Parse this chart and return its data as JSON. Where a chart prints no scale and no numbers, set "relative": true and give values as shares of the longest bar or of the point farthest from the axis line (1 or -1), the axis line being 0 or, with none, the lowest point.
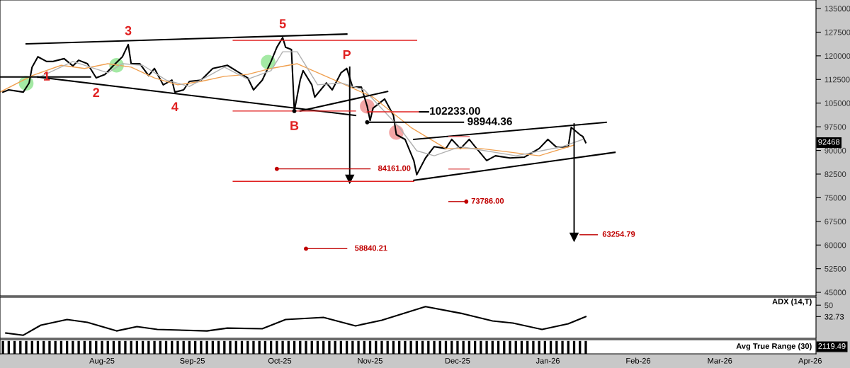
{
  "chart_data": [
    {
      "type": "line",
      "xlim": [
        "2025-06-27",
        "2026-04-03"
      ],
      "ylim": [
        43900,
        137700
      ],
      "yticks": [
        135000,
        127500,
        120000,
        112500,
        105000,
        97500,
        90000,
        82500,
        75000,
        67500,
        60000,
        52500,
        45000
      ],
      "tick_labels": "y",
      "series": [
        {
          "color": "#000000",
          "x": [
            "2025-06-28",
            "2025-06-30",
            "2025-07-05",
            "2025-07-07",
            "2025-07-08",
            "2025-07-10",
            "2025-07-13",
            "2025-07-15",
            "2025-07-19",
            "2025-07-22",
            "2025-07-24",
            "2025-07-27",
            "2025-07-30",
            "2025-08-02",
            "2025-08-05",
            "2025-08-08",
            "2025-08-10",
            "2025-08-11",
            "2025-08-14",
            "2025-08-17",
            "2025-08-19",
            "2025-08-22",
            "2025-08-25",
            "2025-08-26",
            "2025-08-29",
            "2025-08-31",
            "2025-09-04",
            "2025-09-08",
            "2025-09-13",
            "2025-09-16",
            "2025-09-20",
            "2025-09-22",
            "2025-09-25",
            "2025-09-28",
            "2025-09-30",
            "2025-10-02",
            "2025-10-03",
            "2025-10-05",
            "2025-10-06",
            "2025-10-08",
            "2025-10-09",
            "2025-10-12",
            "2025-10-13",
            "2025-10-17",
            "2025-10-19",
            "2025-10-22",
            "2025-10-24",
            "2025-10-25",
            "2025-10-26",
            "2025-10-29",
            "2025-10-31",
            "2025-11-01",
            "2025-11-02",
            "2025-11-06",
            "2025-11-09",
            "2025-11-10",
            "2025-11-13",
            "2025-11-16",
            "2025-11-17",
            "2025-11-20",
            "2025-11-23",
            "2025-11-27",
            "2025-11-29",
            "2025-12-02",
            "2025-12-05",
            "2025-12-07",
            "2025-12-11",
            "2025-12-14",
            "2025-12-19",
            "2025-12-24",
            "2025-12-29",
            "2026-01-01",
            "2026-01-04",
            "2026-01-08",
            "2026-01-09",
            "2026-01-12",
            "2026-01-13",
            "2026-01-14"
          ],
          "values": [
            108500,
            109200,
            108500,
            111400,
            116400,
            119700,
            118200,
            118200,
            119100,
            116800,
            118600,
            117500,
            113000,
            114100,
            117000,
            119700,
            123600,
            117500,
            117500,
            113700,
            116000,
            110800,
            112300,
            108500,
            109200,
            111900,
            112300,
            116000,
            117000,
            115300,
            113000,
            109200,
            112300,
            118200,
            122700,
            125800,
            122700,
            122000,
            102500,
            112300,
            115300,
            110800,
            106900,
            111400,
            109200,
            114600,
            116000,
            113000,
            110100,
            110100,
            104000,
            99500,
            103400,
            106300,
            101100,
            95000,
            93500,
            86800,
            82300,
            87600,
            91200,
            90600,
            93500,
            90600,
            93500,
            91200,
            86800,
            88300,
            87600,
            87900,
            90600,
            93500,
            91000,
            91200,
            97300,
            95000,
            94400,
            92468
          ]
        },
        {
          "color": "#f0a050",
          "x": [
            "2025-06-27",
            "2025-07-08",
            "2025-07-18",
            "2025-07-26",
            "2025-08-03",
            "2025-08-11",
            "2025-08-19",
            "2025-08-27",
            "2025-09-04",
            "2025-09-12",
            "2025-09-20",
            "2025-09-28",
            "2025-10-07",
            "2025-10-22",
            "2025-11-02",
            "2025-11-15",
            "2025-11-27",
            "2025-12-09",
            "2025-12-29",
            "2026-01-10"
          ],
          "values": [
            108500,
            113700,
            117000,
            116000,
            117500,
            116400,
            113000,
            110800,
            111900,
            113500,
            114100,
            116000,
            117500,
            111400,
            106900,
            97300,
            90600,
            90600,
            88300,
            91700
          ]
        },
        {
          "color": "#b0b0b0",
          "x": [
            "2025-07-10",
            "2025-07-22",
            "2025-08-03",
            "2025-08-08",
            "2025-08-15",
            "2025-08-23",
            "2025-08-31",
            "2025-09-12",
            "2025-09-20",
            "2025-09-28",
            "2025-10-02",
            "2025-10-07",
            "2025-10-14",
            "2025-10-22",
            "2025-10-30",
            "2025-11-11",
            "2025-11-17",
            "2025-11-23",
            "2025-12-02",
            "2025-12-21",
            "2026-01-06",
            "2026-01-13"
          ],
          "values": [
            113000,
            118200,
            114600,
            117500,
            117000,
            112300,
            110300,
            116400,
            112600,
            115300,
            121300,
            121300,
            110800,
            111400,
            109200,
            97300,
            89900,
            88300,
            91200,
            88300,
            91200,
            93500
          ]
        },
        {
          "color": "#000000",
          "x": [
            "2025-07-06",
            "2025-10-24"
          ],
          "values": [
            123800,
            126900
          ]
        },
        {
          "color": "#000000",
          "x": [
            "2025-06-27",
            "2025-07-28"
          ],
          "values": [
            113300,
            113300
          ]
        },
        {
          "color": "#000000",
          "x": [
            "2025-07-10",
            "2025-10-27"
          ],
          "values": [
            113300,
            101100
          ]
        },
        {
          "color": "#000000",
          "x": [
            "2025-10-08",
            "2025-11-07"
          ],
          "values": [
            102500,
            108700
          ]
        },
        {
          "color": "#000000",
          "x": [
            "2025-11-16",
            "2026-01-21"
          ],
          "values": [
            93500,
            98900
          ]
        },
        {
          "color": "#000000",
          "x": [
            "2025-11-16",
            "2026-01-24"
          ],
          "values": [
            80500,
            89400
          ]
        },
        {
          "color": "#000000",
          "marker": "triangle",
          "x": [
            "2025-10-25",
            "2025-10-25"
          ],
          "values": [
            116400,
            80900
          ]
        },
        {
          "color": "#000000",
          "marker": "triangle",
          "x": [
            "2026-01-10",
            "2026-01-10"
          ],
          "values": [
            98400,
            62500
          ]
        },
        {
          "color": "#e02020",
          "x": [
            "2025-09-15",
            "2025-11-17"
          ],
          "values": [
            124900,
            124900
          ]
        },
        {
          "color": "#e02020",
          "x": [
            "2025-09-15",
            "2025-10-27"
          ],
          "values": [
            102500,
            102500
          ]
        },
        {
          "color": "#e02020",
          "x": [
            "2025-09-15",
            "2025-11-16"
          ],
          "values": [
            80200,
            80200
          ]
        },
        {
          "color": "#e02020",
          "x": [
            "2025-10-31",
            "2025-11-18"
          ],
          "values": [
            102233,
            102233
          ]
        },
        {
          "color": "#000000",
          "x": [
            "2025-11-18",
            "2025-11-21"
          ],
          "values": [
            102233,
            102233
          ]
        },
        {
          "color": "#000000",
          "x": [
            "2025-10-31",
            "2025-12-03"
          ],
          "values": [
            98944.36,
            98944.36
          ]
        },
        {
          "color": "#c00000",
          "x": [
            "2025-09-30",
            "2025-11-01"
          ],
          "values": [
            84161,
            84161
          ]
        },
        {
          "color": "#c00000",
          "x": [
            "2025-11-28",
            "2025-12-04"
          ],
          "values": [
            73786,
            73786
          ]
        },
        {
          "color": "#c00000",
          "x": [
            "2025-10-10",
            "2025-10-24"
          ],
          "values": [
            58840.21,
            58840.21
          ]
        },
        {
          "color": "#c00000",
          "x": [
            "2026-01-12",
            "2026-01-18"
          ],
          "values": [
            63254.79,
            63254.79
          ]
        },
        {
          "color": "#e06060",
          "x": [
            "2025-11-28",
            "2025-12-05"
          ],
          "values": [
            84100,
            84100
          ]
        },
        {
          "color": "#e06060",
          "x": [
            "2025-11-28",
            "2025-12-05"
          ],
          "values": [
            94400,
            94400
          ]
        },
        {
          "type": "scatter",
          "color": "#c00000",
          "marker": "circle",
          "x": [
            "2025-09-30",
            "2025-12-04",
            "2025-10-10"
          ],
          "values": [
            84161,
            73786,
            58840.21
          ]
        },
        {
          "type": "scatter",
          "color": "#000000",
          "marker": "circle",
          "x": [
            "2025-10-06",
            "2025-10-31"
          ],
          "values": [
            102500,
            98944.36
          ]
        },
        {
          "type": "scatter",
          "color": "#7de07d",
          "marker": "circle",
          "x": [
            "2025-07-06",
            "2025-08-06",
            "2025-09-27"
          ],
          "values": [
            111300,
            117000,
            118000
          ]
        },
        {
          "type": "scatter",
          "color": "#f08080",
          "marker": "circle",
          "x": [
            "2025-10-31",
            "2025-11-10"
          ],
          "values": [
            104000,
            95700
          ]
        }
      ],
      "annotations": [
        {
          "text": "1",
          "x": "2025-07-13",
          "y": 118200
        },
        {
          "text": "2",
          "x": "2025-07-30",
          "y": 113000
        },
        {
          "text": "3",
          "x": "2025-08-10",
          "y": 123600
        },
        {
          "text": "4",
          "x": "2025-08-26",
          "y": 108500
        },
        {
          "text": "5",
          "x": "2025-10-02",
          "y": 125800
        },
        {
          "text": "P",
          "x": "2025-10-24",
          "y": 116000
        },
        {
          "text": "B",
          "x": "2025-10-06",
          "y": 102500
        },
        {
          "text": "102233.00",
          "x": "2025-11-21",
          "y": 102233
        },
        {
          "text": "98944.36",
          "x": "2025-12-04",
          "y": 98944.36
        },
        {
          "text": "84161.00",
          "x": "2025-11-02",
          "y": 84161
        },
        {
          "text": "73786.00",
          "x": "2025-12-04",
          "y": 73786
        },
        {
          "text": "63254.79",
          "x": "2026-01-18",
          "y": 63254.79
        },
        {
          "text": "58840.21",
          "x": "2025-10-25",
          "y": 58840.21
        },
        {
          "text": "92468",
          "y": 92468
        }
      ]
    },
    {
      "type": "line",
      "title": "ADX (14,T)",
      "xlim": [
        "2025-06-27",
        "2026-04-03"
      ],
      "ylim": [
        0,
        62
      ],
      "yticks": [
        50,
        {
          "value": 32.73,
          "label": "32.73"
        }
      ],
      "tick_labels": "y",
      "series": [
        {
          "color": "#000000",
          "x": [
            "2025-06-29",
            "2025-07-05",
            "2025-07-11",
            "2025-07-20",
            "2025-07-27",
            "2025-08-06",
            "2025-08-13",
            "2025-08-20",
            "2025-09-06",
            "2025-09-13",
            "2025-09-25",
            "2025-10-03",
            "2025-10-16",
            "2025-10-27",
            "2025-11-05",
            "2025-11-20",
            "2025-12-03",
            "2025-12-13",
            "2025-12-20",
            "2025-12-30",
            "2026-01-08",
            "2026-01-14"
          ],
          "values": [
            7.9,
            4.6,
            19.8,
            28.4,
            24.1,
            11.1,
            17.6,
            13.3,
            11.1,
            15.4,
            14.4,
            28.4,
            31.6,
            18.7,
            27.3,
            47.8,
            37,
            26.2,
            23,
            13.3,
            21.9,
            32.73
          ]
        }
      ]
    },
    {
      "type": "bar",
      "title": "Avg True Range (30)",
      "relative": true,
      "xlim": [
        "2025-06-27",
        "2026-04-03"
      ],
      "tick_labels": "x",
      "color": "#000000",
      "xticks": [
        {
          "value": "2025-08-01",
          "label": "Aug-25"
        },
        {
          "value": "2025-09-01",
          "label": "Sep-25"
        },
        {
          "value": "2025-10-01",
          "label": "Oct-25"
        },
        {
          "value": "2025-11-01",
          "label": "Nov-25"
        },
        {
          "value": "2025-12-01",
          "label": "Dec-25"
        },
        {
          "value": "2026-01-01",
          "label": "Jan-26"
        },
        {
          "value": "2026-02-01",
          "label": "Feb-26"
        },
        {
          "value": "2026-03-01",
          "label": "Mar-26"
        },
        {
          "value": "2026-04-01",
          "label": "Apr-26"
        }
      ],
      "annotations": [
        "2119.49"
      ],
      "x": [
        "2025-06-28",
        "2025-06-30",
        "2025-07-02",
        "2025-07-04",
        "2025-07-06",
        "2025-07-08",
        "2025-07-10",
        "2025-07-12",
        "2025-07-14",
        "2025-07-16",
        "2025-07-18",
        "2025-07-20",
        "2025-07-22",
        "2025-07-24",
        "2025-07-26",
        "2025-07-28",
        "2025-07-30",
        "2025-08-01",
        "2025-08-03",
        "2025-08-05",
        "2025-08-07",
        "2025-08-09",
        "2025-08-11",
        "2025-08-13",
        "2025-08-15",
        "2025-08-17",
        "2025-08-19",
        "2025-08-21",
        "2025-08-23",
        "2025-08-25",
        "2025-08-27",
        "2025-08-29",
        "2025-08-31",
        "2025-09-02",
        "2025-09-04",
        "2025-09-06",
        "2025-09-08",
        "2025-09-10",
        "2025-09-12",
        "2025-09-14",
        "2025-09-16",
        "2025-09-18",
        "2025-09-20",
        "2025-09-22",
        "2025-09-24",
        "2025-09-26",
        "2025-09-28",
        "2025-09-30",
        "2025-10-02",
        "2025-10-04",
        "2025-10-06",
        "2025-10-08",
        "2025-10-10",
        "2025-10-12",
        "2025-10-14",
        "2025-10-16",
        "2025-10-18",
        "2025-10-20",
        "2025-10-22",
        "2025-10-24",
        "2025-10-26",
        "2025-10-28",
        "2025-10-30",
        "2025-11-01",
        "2025-11-03",
        "2025-11-05",
        "2025-11-07",
        "2025-11-09",
        "2025-11-11",
        "2025-11-13",
        "2025-11-15",
        "2025-11-17",
        "2025-11-19",
        "2025-11-21",
        "2025-11-23",
        "2025-11-25",
        "2025-11-27",
        "2025-11-29",
        "2025-12-01",
        "2025-12-03",
        "2025-12-05",
        "2025-12-07",
        "2025-12-09",
        "2025-12-11",
        "2025-12-13",
        "2025-12-15",
        "2025-12-17",
        "2025-12-19",
        "2025-12-21",
        "2025-12-23",
        "2025-12-25",
        "2025-12-27",
        "2025-12-29",
        "2025-12-31",
        "2026-01-02",
        "2026-01-04",
        "2026-01-06",
        "2026-01-08",
        "2026-01-10",
        "2026-01-12",
        "2026-01-14"
      ],
      "values": [
        1,
        1,
        1,
        1,
        1,
        1,
        1,
        1,
        1,
        1,
        1,
        1,
        1,
        1,
        1,
        1,
        1,
        1,
        1,
        1,
        1,
        1,
        1,
        1,
        1,
        1,
        1,
        1,
        1,
        1,
        1,
        1,
        1,
        1,
        1,
        1,
        1,
        1,
        1,
        1,
        1,
        1,
        1,
        1,
        1,
        1,
        1,
        1,
        1,
        1,
        1,
        1,
        1,
        1,
        1,
        1,
        1,
        1,
        1,
        1,
        1,
        1,
        1,
        1,
        1,
        1,
        1,
        1,
        1,
        1,
        1,
        1,
        1,
        1,
        1,
        1,
        1,
        1,
        1,
        1,
        1,
        1,
        1,
        1,
        1,
        1,
        1,
        1,
        1,
        1,
        1,
        1,
        1,
        1,
        1,
        1,
        1,
        1,
        1,
        1,
        1
      ]
    }
  ]
}
